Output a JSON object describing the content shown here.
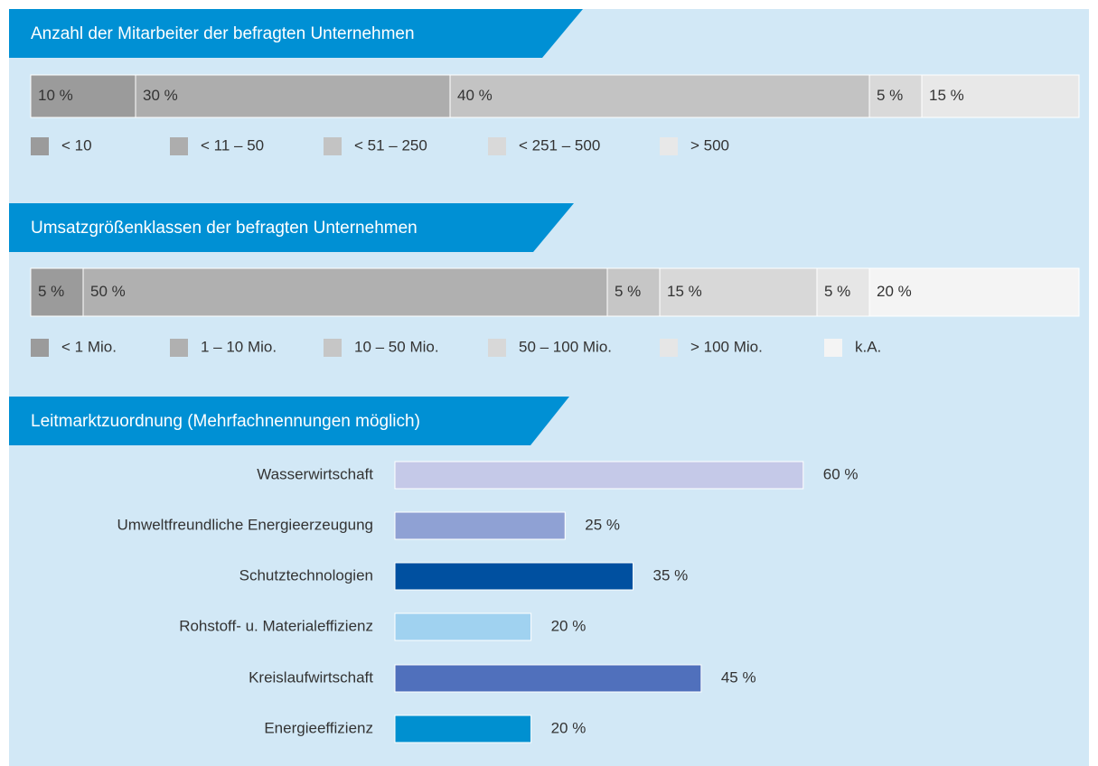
{
  "chart_data": [
    {
      "type": "stacked_bar",
      "title": "Anzahl der Mitarbeiter der befragten Unternehmen",
      "series": [
        {
          "name": "< 10",
          "color": "#9b9b9b",
          "values": [
            10
          ],
          "value_labels": [
            "10 %"
          ]
        },
        {
          "name": "< 11 – 50",
          "color": "#adadad",
          "values": [
            30
          ],
          "value_labels": [
            "30 %"
          ]
        },
        {
          "name": "< 51 – 250",
          "color": "#c3c3c3",
          "values": [
            40
          ],
          "value_labels": [
            "40 %"
          ]
        },
        {
          "name": "< 251 – 500",
          "color": "#d9d9d9",
          "values": [
            5
          ],
          "value_labels": [
            "5 %"
          ]
        },
        {
          "name": "> 500",
          "color": "#e8e8e8",
          "values": [
            15
          ],
          "value_labels": [
            "15 %"
          ]
        }
      ]
    },
    {
      "type": "stacked_bar",
      "title": "Umsatzgrößenklassen der befragten Unternehmen",
      "series": [
        {
          "name": "< 1 Mio.",
          "color": "#9b9b9b",
          "values": [
            5
          ],
          "value_labels": [
            "5 %"
          ]
        },
        {
          "name": "1 – 10 Mio.",
          "color": "#b0b0b0",
          "values": [
            50
          ],
          "value_labels": [
            "50 %"
          ]
        },
        {
          "name": "10 – 50 Mio.",
          "color": "#c6c6c6",
          "values": [
            5
          ],
          "value_labels": [
            "5 %"
          ]
        },
        {
          "name": "50 – 100 Mio.",
          "color": "#d8d8d8",
          "values": [
            15
          ],
          "value_labels": [
            "15 %"
          ]
        },
        {
          "name": "> 100 Mio.",
          "color": "#e6e6e6",
          "values": [
            5
          ],
          "value_labels": [
            "5 %"
          ]
        },
        {
          "name": "k.A.",
          "color": "#f4f4f4",
          "values": [
            20
          ],
          "value_labels": [
            "20 %"
          ]
        }
      ]
    },
    {
      "type": "bar",
      "orientation": "horizontal",
      "title": "Leitmarktzuordnung (Mehrfachnennungen möglich)",
      "categories": [
        "Wasserwirtschaft",
        "Umweltfreundliche Energieerzeugung",
        "Schutztechnologien",
        "Rohstoff- u. Materialeffizienz",
        "Kreislaufwirtschaft",
        "Energieeffizienz"
      ],
      "values": [
        60,
        25,
        35,
        20,
        45,
        20
      ],
      "value_labels": [
        "60 %",
        "25 %",
        "35 %",
        "20 %",
        "45 %",
        "20 %"
      ],
      "colors": [
        "#c5c9e8",
        "#8fa1d4",
        "#0050a0",
        "#a0d2f0",
        "#5070bc",
        "#0090d0"
      ]
    }
  ]
}
